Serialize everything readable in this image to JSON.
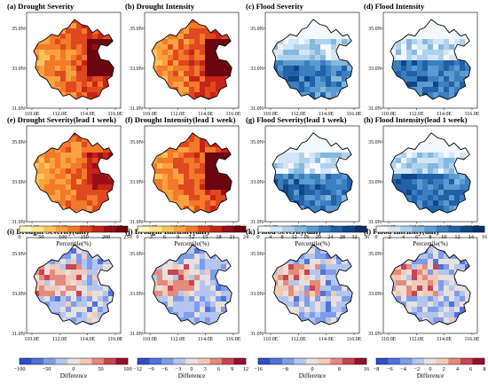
{
  "panels": [
    {
      "title": "(a) Drought Severity",
      "kind": "drought",
      "seed": 1,
      "fill": 0.62,
      "hot": 0.35
    },
    {
      "title": "(b) Drought Intensity",
      "kind": "drought",
      "seed": 2,
      "fill": 0.72,
      "hot": 0.55
    },
    {
      "title": "(c) Flood Severity",
      "kind": "flood",
      "seed": 3,
      "fill": 0.75,
      "hot": 0.45
    },
    {
      "title": "(d) Flood Intensity",
      "kind": "flood",
      "seed": 4,
      "fill": 0.75,
      "hot": 0.5
    },
    {
      "title": "(e) Drought Severity(lead 1 week)",
      "kind": "drought",
      "seed": 5,
      "fill": 0.45,
      "hot": 0.2
    },
    {
      "title": "(f) Drought Intensity(lead 1 week)",
      "kind": "drought",
      "seed": 6,
      "fill": 0.7,
      "hot": 0.5
    },
    {
      "title": "(g) Flood Severity(lead 1 week)",
      "kind": "flood",
      "seed": 7,
      "fill": 0.5,
      "hot": 0.55
    },
    {
      "title": "(h) Flood Intensity(lead 1 week)",
      "kind": "flood",
      "seed": 8,
      "fill": 0.55,
      "hot": 0.6
    },
    {
      "title": "(i) Drought Severity(diff)",
      "kind": "diff",
      "seed": 9,
      "fill": 0.6,
      "hot": 0.5
    },
    {
      "title": "(j) Drought Intensity(diff)",
      "kind": "diff",
      "seed": 10,
      "fill": 0.6,
      "hot": 0.5
    },
    {
      "title": "(k) Flood Severity(diff)",
      "kind": "diff",
      "seed": 11,
      "fill": 0.6,
      "hot": 0.5
    },
    {
      "title": "(l) Flood Intensity(diff)",
      "kind": "diff",
      "seed": 12,
      "fill": 0.6,
      "hot": 0.5
    }
  ],
  "axes": {
    "xticks": [
      "110.0E",
      "112.0E",
      "114.0E",
      "116.0E"
    ],
    "yticks": [
      "35.0N",
      "33.0N",
      "31.0N"
    ]
  },
  "colorbars": [
    {
      "ramp": "drought",
      "labels": [
        "0",
        "50",
        "100",
        "150",
        "200",
        "250"
      ],
      "title": "Percentile(%)"
    },
    {
      "ramp": "drought",
      "labels": [
        "0",
        "3",
        "6",
        "9",
        "12",
        "15",
        "18",
        "21",
        "24"
      ],
      "title": "Percentile(%)"
    },
    {
      "ramp": "flood",
      "labels": [
        "0",
        "4",
        "8",
        "12",
        "16",
        "20",
        "24",
        "28",
        "32",
        "36"
      ],
      "title": "Percentile(%)"
    },
    {
      "ramp": "flood",
      "labels": [
        "0",
        "2",
        "4",
        "6",
        "8",
        "10",
        "12",
        "14",
        "16"
      ],
      "title": "Percentile(%)"
    },
    {
      "ramp": "diff",
      "labels": [
        "−100",
        "−50",
        "0",
        "50",
        "100"
      ],
      "title": "Difference"
    },
    {
      "ramp": "diff",
      "labels": [
        "−12",
        "−9",
        "−6",
        "−3",
        "0",
        "3",
        "6",
        "9",
        "12"
      ],
      "title": "Difference"
    },
    {
      "ramp": "diff",
      "labels": [
        "−16",
        "−8",
        "0",
        "8",
        "16"
      ],
      "title": "Difference"
    },
    {
      "ramp": "diff",
      "labels": [
        "−8",
        "−6",
        "−4",
        "−2",
        "0",
        "2",
        "4",
        "6",
        "8"
      ],
      "title": "Difference"
    }
  ],
  "colors": {
    "drought": [
      "#fff6c4",
      "#fde58b",
      "#fcc55a",
      "#f9a23f",
      "#f27a2a",
      "#e0481f",
      "#c52418",
      "#9a0f17",
      "#6b0610"
    ],
    "flood": [
      "#f2f8fd",
      "#d4e6f4",
      "#b0d1eb",
      "#85b8de",
      "#5b9bd0",
      "#3a7fc0",
      "#2161a8",
      "#10468a",
      "#08306b"
    ],
    "diff": [
      "#2e4fc7",
      "#4f72dd",
      "#7f9ce9",
      "#b4c5ef",
      "#e8e0dc",
      "#f2c9b8",
      "#e48b7c",
      "#c94452",
      "#9a0f2c"
    ]
  }
}
